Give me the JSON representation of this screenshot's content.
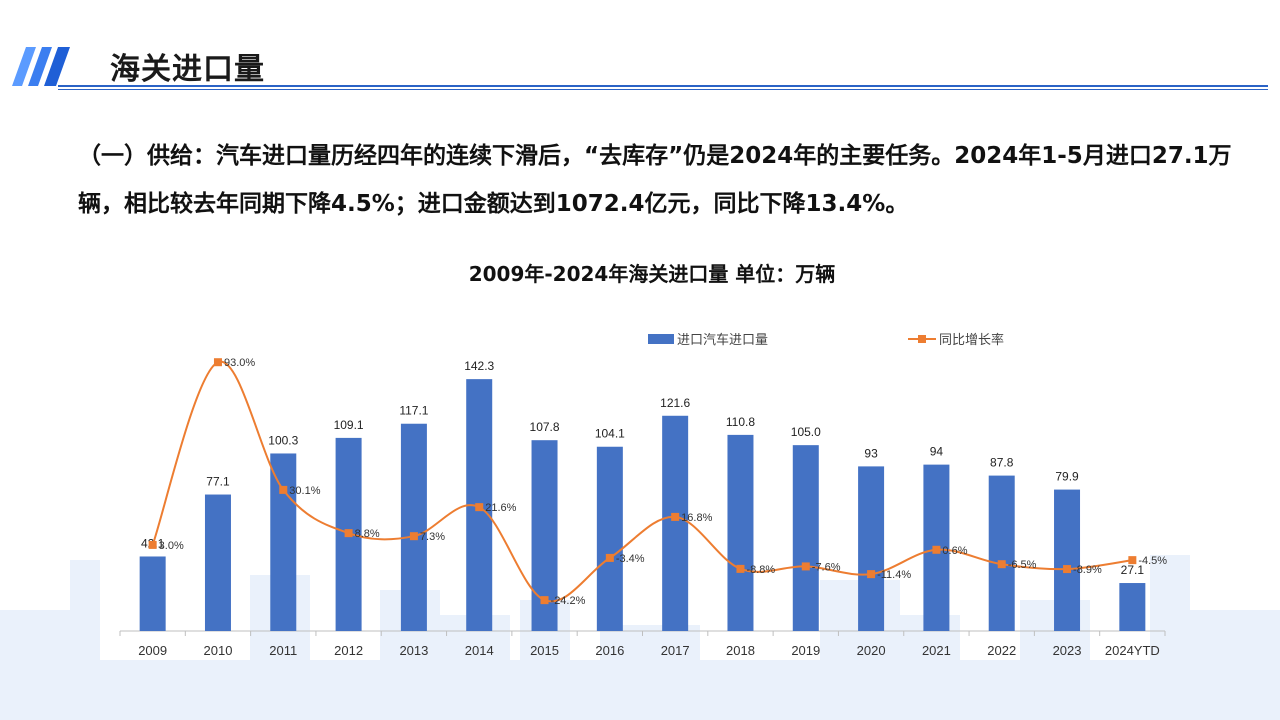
{
  "header": {
    "title": "海关进口量"
  },
  "paragraph": "（一）供给：汽车进口量历经四年的连续下滑后，“去库存”仍是2024年的主要任务。2024年1-5月进口27.1万辆，相比较去年同期下降4.5%；进口金额达到1072.4亿元，同比下降13.4%。",
  "colors": {
    "accent": "#2b63c6",
    "bar": "#4472c4",
    "line": "#ed7d31"
  },
  "chart_data": {
    "type": "bar+line",
    "title": "2009年-2024年海关进口量  单位：万辆",
    "categories": [
      "2009",
      "2010",
      "2011",
      "2012",
      "2013",
      "2014",
      "2015",
      "2016",
      "2017",
      "2018",
      "2019",
      "2020",
      "2021",
      "2022",
      "2023",
      "2024YTD"
    ],
    "series": [
      {
        "name": "进口汽车进口量",
        "type": "bar",
        "values": [
          42.1,
          77.1,
          100.3,
          109.1,
          117.1,
          142.3,
          107.8,
          104.1,
          121.6,
          110.8,
          105.0,
          93,
          94,
          87.8,
          79.9,
          27.1
        ],
        "labels": [
          "42.1",
          "77.1",
          "100.3",
          "109.1",
          "117.1",
          "142.3",
          "107.8",
          "104.1",
          "121.6",
          "110.8",
          "105.0",
          "93",
          "94",
          "87.8",
          "79.9",
          "27.1"
        ]
      },
      {
        "name": "同比增长率",
        "type": "line",
        "values": [
          3.0,
          93.0,
          30.1,
          8.8,
          7.3,
          21.6,
          -24.2,
          -3.4,
          16.8,
          -8.8,
          -7.6,
          -11.4,
          0.6,
          -6.5,
          -8.9,
          -4.5
        ],
        "labels": [
          "3.0%",
          "93.0%",
          "30.1%",
          "8.8%",
          "7.3%",
          "21.6%",
          "-24.2%",
          "-3.4%",
          "16.8%",
          "-8.8%",
          "-7.6%",
          "-11.4%",
          "0.6%",
          "-6.5%",
          "-8.9%",
          "-4.5%"
        ]
      }
    ],
    "legend": "top",
    "grid": false
  }
}
